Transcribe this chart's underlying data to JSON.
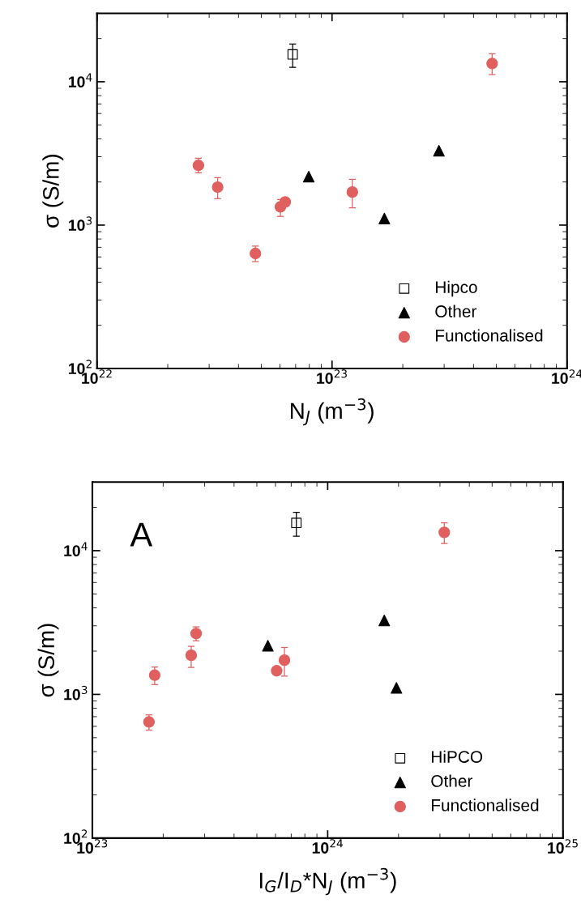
{
  "chart_data": [
    {
      "type": "scatter",
      "xlabel": "N$_{J}$ (m$^{−3}$)",
      "ylabel": "σ (S/m)",
      "log": "xy",
      "xlim": [
        1e+22,
        1e+24
      ],
      "ylim": [
        100,
        30000
      ],
      "xticks": [
        {
          "value": 1e+22,
          "label": "10$^{22}$"
        },
        {
          "value": 1e+23,
          "label": "10$^{23}$"
        },
        {
          "value": 1e+24,
          "label": "10$^{24}$"
        }
      ],
      "yticks": [
        {
          "value": 100,
          "label": "10$^{2}$"
        },
        {
          "value": 1000,
          "label": "10$^{3}$"
        },
        {
          "value": 10000,
          "label": "10$^{4}$"
        }
      ],
      "grid": false,
      "legend": "bottom right",
      "series": [
        {
          "name": "Hipco",
          "color": "#000000",
          "marker": "square",
          "x": [
            6.8e+22
          ],
          "values": [
            15500
          ],
          "errors": [
            [
              12600,
              18300
            ]
          ]
        },
        {
          "name": "Other",
          "color": "#000000",
          "marker": "triangle",
          "x": [
            7.96e+22,
            1.67e+23,
            2.85e+23
          ],
          "values": [
            2180,
            1110,
            3300
          ],
          "errors": [
            null,
            null,
            null
          ]
        },
        {
          "name": "Functionalised",
          "color": "#e06060",
          "marker": "circle",
          "x": [
            2.7e+22,
            3.26e+22,
            4.72e+22,
            6.03e+22,
            6.32e+22,
            1.22e+23,
            4.8e+23
          ],
          "values": [
            2610,
            1840,
            634,
            1340,
            1450,
            1700,
            13400
          ],
          "errors": [
            [
              2320,
              2930
            ],
            [
              1530,
              2140
            ],
            [
              556,
              714
            ],
            [
              1150,
              1510
            ],
            null,
            [
              1320,
              2090
            ],
            [
              11200,
              15700
            ]
          ]
        }
      ]
    },
    {
      "type": "scatter",
      "xlabel": "I$_{G}$/I$_{D}$*N$_{J}$ (m$^{−3}$)",
      "ylabel": "σ (S/m)",
      "log": "xy",
      "xlim": [
        1e+23,
        1e+25
      ],
      "ylim": [
        100,
        30000
      ],
      "xticks": [
        {
          "value": 1e+23,
          "label": "10$^{23}$"
        },
        {
          "value": 1e+24,
          "label": "10$^{24}$"
        },
        {
          "value": 1e+25,
          "label": "10$^{25}$"
        }
      ],
      "yticks": [
        {
          "value": 100,
          "label": "10$^{2}$"
        },
        {
          "value": 1000,
          "label": "10$^{3}$"
        },
        {
          "value": 10000,
          "label": "10$^{4}$"
        }
      ],
      "grid": false,
      "legend": "bottom right",
      "annotations": [
        "A"
      ],
      "series": [
        {
          "name": "HiPCO",
          "color": "#000000",
          "marker": "square",
          "x": [
            7.36e+23
          ],
          "values": [
            15600
          ],
          "errors": [
            [
              12600,
              18500
            ]
          ]
        },
        {
          "name": "Other",
          "color": "#000000",
          "marker": "triangle",
          "x": [
            5.57e+23,
            1.74e+24,
            1.96e+24
          ],
          "values": [
            2180,
            3270,
            1110
          ],
          "errors": [
            null,
            null,
            null
          ]
        },
        {
          "name": "Functionalised",
          "color": "#e06060",
          "marker": "circle",
          "x": [
            1.74e+23,
            1.84e+23,
            2.63e+23,
            2.76e+23,
            6.07e+23,
            6.55e+23,
            3.13e+24
          ],
          "values": [
            643,
            1360,
            1870,
            2650,
            1460,
            1730,
            13400
          ],
          "errors": [
            [
              564,
              720
            ],
            [
              1170,
              1550
            ],
            [
              1540,
              2160
            ],
            [
              2360,
              2950
            ],
            null,
            [
              1340,
              2120
            ],
            [
              11200,
              15600
            ]
          ]
        }
      ]
    }
  ]
}
